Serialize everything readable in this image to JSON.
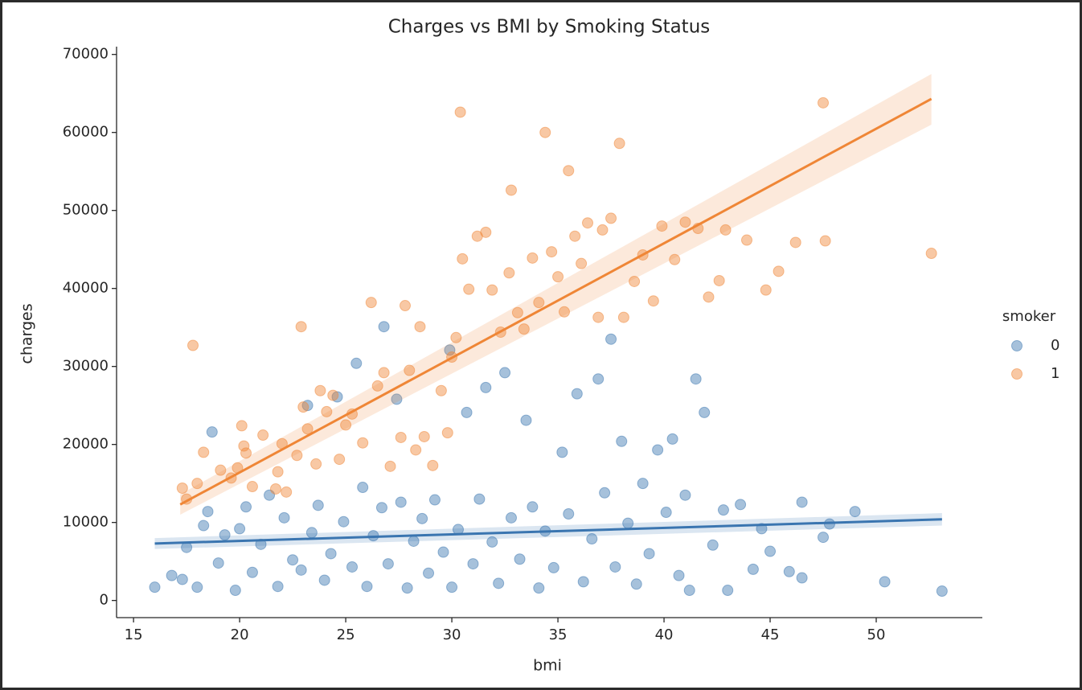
{
  "chart_data": {
    "type": "scatter",
    "title": "Charges vs BMI by Smoking Status",
    "x_label": "bmi",
    "y_label": "charges",
    "legend_title": "smoker",
    "legend_position": "right",
    "xlim": [
      14.2,
      55.0
    ],
    "ylim": [
      -2200,
      71000
    ],
    "xticks": [
      15,
      20,
      25,
      30,
      35,
      40,
      45,
      50
    ],
    "yticks": [
      0,
      10000,
      20000,
      30000,
      40000,
      50000,
      60000,
      70000
    ],
    "series": [
      {
        "name": "0",
        "color": "#3a75b0",
        "x": [
          16.0,
          16.8,
          17.3,
          17.5,
          18.0,
          18.3,
          18.5,
          18.7,
          19.0,
          19.3,
          19.8,
          20.0,
          20.3,
          20.6,
          21.0,
          21.4,
          21.8,
          22.1,
          22.5,
          22.9,
          23.2,
          23.4,
          23.7,
          24.0,
          24.3,
          24.6,
          24.9,
          25.3,
          25.5,
          25.8,
          26.0,
          26.3,
          26.7,
          26.8,
          27.0,
          27.4,
          27.6,
          27.9,
          28.2,
          28.6,
          28.9,
          29.2,
          29.6,
          29.9,
          30.0,
          30.3,
          30.7,
          31.0,
          31.3,
          31.6,
          31.9,
          32.2,
          32.5,
          32.8,
          33.2,
          33.5,
          33.8,
          34.1,
          34.4,
          34.8,
          35.2,
          35.5,
          35.9,
          36.2,
          36.6,
          36.9,
          37.2,
          37.5,
          37.7,
          38.0,
          38.3,
          38.7,
          39.0,
          39.3,
          39.7,
          40.1,
          40.4,
          40.7,
          41.0,
          41.2,
          41.5,
          41.9,
          42.3,
          42.8,
          43.0,
          43.6,
          44.2,
          44.6,
          45.0,
          45.9,
          46.5,
          46.5,
          47.5,
          47.8,
          49.0,
          50.4,
          53.1
        ],
        "values": [
          1700,
          3200,
          2700,
          6800,
          1700,
          9600,
          11400,
          21600,
          4800,
          8400,
          1300,
          9200,
          12000,
          3600,
          7200,
          13500,
          1800,
          10600,
          5200,
          3900,
          25000,
          8700,
          12200,
          2600,
          6000,
          26100,
          10100,
          4300,
          30400,
          14500,
          1800,
          8300,
          11900,
          35100,
          4700,
          25800,
          12600,
          1600,
          7600,
          10500,
          3500,
          12900,
          6200,
          32100,
          1700,
          9100,
          24100,
          4700,
          13000,
          27300,
          7500,
          2200,
          29200,
          10600,
          5300,
          23100,
          12000,
          1600,
          8900,
          4200,
          19000,
          11100,
          26500,
          2400,
          7900,
          28400,
          13800,
          33500,
          4300,
          20400,
          9900,
          2100,
          15000,
          6000,
          19300,
          11300,
          20700,
          3200,
          13500,
          1300,
          28400,
          24100,
          7100,
          11600,
          1300,
          12300,
          4000,
          9200,
          6300,
          3700,
          12600,
          2900,
          8100,
          9800,
          11400,
          2400,
          1200
        ],
        "fit": {
          "x": [
            16.0,
            53.1
          ],
          "values": [
            7300,
            10400
          ],
          "lower": [
            6600,
            9600
          ],
          "upper": [
            8000,
            11200
          ]
        }
      },
      {
        "name": "1",
        "color": "#ef8636",
        "x": [
          17.8,
          17.3,
          17.5,
          18.0,
          18.3,
          19.1,
          19.6,
          19.9,
          20.1,
          20.2,
          20.3,
          20.6,
          21.1,
          21.7,
          21.8,
          22.0,
          22.2,
          22.7,
          22.9,
          23.0,
          23.2,
          23.6,
          23.8,
          24.1,
          24.4,
          24.7,
          25.0,
          25.3,
          25.8,
          26.2,
          26.5,
          26.8,
          27.1,
          27.6,
          27.8,
          28.0,
          28.3,
          28.5,
          28.7,
          29.1,
          29.5,
          29.8,
          30.0,
          30.2,
          30.4,
          30.5,
          30.8,
          31.2,
          31.6,
          31.9,
          32.3,
          32.7,
          32.8,
          33.1,
          33.4,
          33.8,
          34.1,
          34.4,
          34.7,
          35.0,
          35.3,
          35.5,
          35.8,
          36.1,
          36.4,
          36.9,
          37.1,
          37.5,
          37.9,
          38.1,
          38.6,
          39.0,
          39.5,
          39.9,
          40.5,
          41.0,
          41.6,
          42.1,
          42.6,
          42.9,
          43.9,
          44.8,
          45.4,
          46.2,
          47.5,
          47.6,
          52.6
        ],
        "values": [
          32700,
          14400,
          13000,
          15000,
          19000,
          16700,
          15700,
          17000,
          22400,
          19800,
          18900,
          14600,
          21200,
          14300,
          16500,
          20100,
          13900,
          18600,
          35100,
          24800,
          22000,
          17500,
          26900,
          24200,
          26300,
          18100,
          22500,
          23900,
          20200,
          38200,
          27500,
          29200,
          17200,
          20900,
          37800,
          29500,
          19300,
          35100,
          21000,
          17300,
          26900,
          21500,
          31200,
          33700,
          62600,
          43800,
          39900,
          46700,
          47200,
          39800,
          34400,
          42000,
          52600,
          36900,
          34800,
          43900,
          38200,
          60000,
          44700,
          41500,
          37000,
          55100,
          46700,
          43200,
          48400,
          36300,
          47500,
          49000,
          58600,
          36300,
          40900,
          44300,
          38400,
          48000,
          43700,
          48500,
          47700,
          38900,
          41000,
          47500,
          46200,
          39800,
          42200,
          45900,
          63800,
          46100,
          44500
        ],
        "fit": {
          "x": [
            17.2,
            52.6
          ],
          "values": [
            12300,
            64300
          ],
          "lower": [
            11000,
            61000
          ],
          "upper": [
            13600,
            67500
          ]
        }
      }
    ]
  }
}
